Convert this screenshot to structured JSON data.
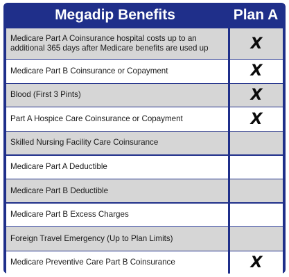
{
  "header": {
    "benefits_title": "Megadip Benefits",
    "plan_title": "Plan A"
  },
  "rows": [
    {
      "benefit": "Medicare Part A Coinsurance hospital costs up to an additional 365 days after Medicare benefits are used up",
      "plan_a": "X",
      "shaded": true
    },
    {
      "benefit": "Medicare Part B Coinsurance or Copayment",
      "plan_a": "X",
      "shaded": false
    },
    {
      "benefit": "Blood (First 3 Pints)",
      "plan_a": "X",
      "shaded": true
    },
    {
      "benefit": "Part A Hospice Care Coinsurance or Copayment",
      "plan_a": "X",
      "shaded": false
    },
    {
      "benefit": "Skilled Nursing Facility Care Coinsurance",
      "plan_a": "",
      "shaded": true
    },
    {
      "benefit": "Medicare Part A Deductible",
      "plan_a": "",
      "shaded": false
    },
    {
      "benefit": "Medicare Part B Deductible",
      "plan_a": "",
      "shaded": true
    },
    {
      "benefit": "Medicare Part B Excess Charges",
      "plan_a": "",
      "shaded": false
    },
    {
      "benefit": "Foreign Travel Emergency (Up to Plan Limits)",
      "plan_a": "",
      "shaded": true
    },
    {
      "benefit": "Medicare Preventive Care Part B Coinsurance",
      "plan_a": "X",
      "shaded": false
    }
  ],
  "colors": {
    "frame": "#1f2f8a",
    "shaded_row": "#d6d6d6",
    "plain_row": "#ffffff"
  }
}
